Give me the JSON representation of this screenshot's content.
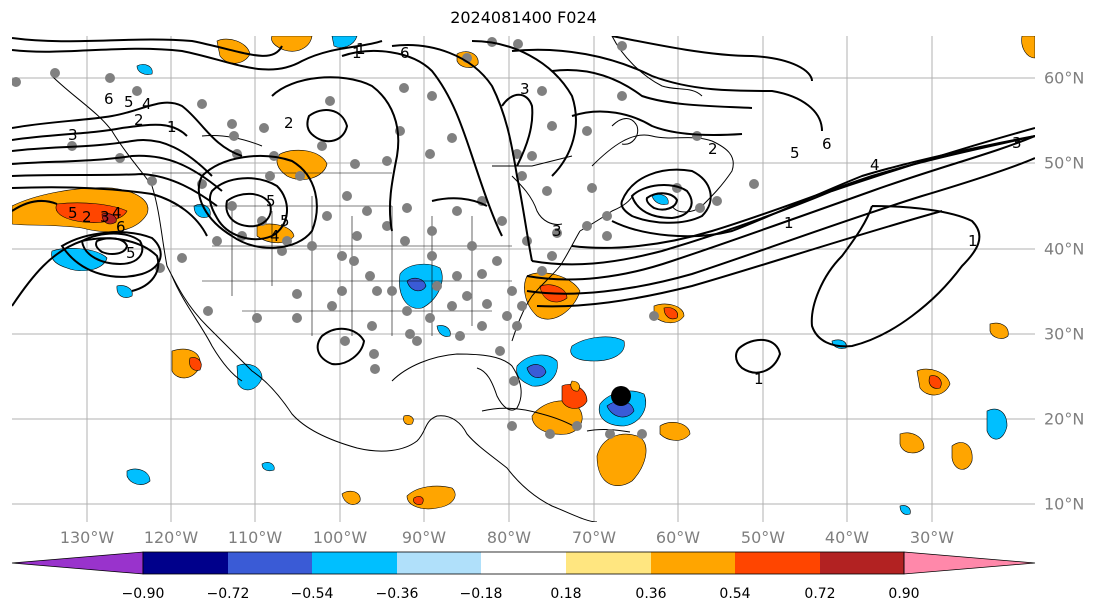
{
  "title": "2024081400 F024",
  "lon_labels": [
    "130°W",
    "120°W",
    "110°W",
    "100°W",
    "90°W",
    "80°W",
    "70°W",
    "60°W",
    "50°W",
    "40°W",
    "30°W"
  ],
  "lat_labels": [
    "60°N",
    "50°N",
    "40°N",
    "30°N",
    "20°N",
    "10°N"
  ],
  "colorbar": {
    "colors": [
      "#9933cc",
      "#00008b",
      "#3a5bd6",
      "#00bfff",
      "#b0e0fa",
      "#ffffff",
      "#ffe680",
      "#ffa500",
      "#ff4500",
      "#b22222",
      "#ff88aa"
    ],
    "labels": [
      "−0.90",
      "−0.72",
      "−0.54",
      "−0.36",
      "−0.18",
      "0.18",
      "0.36",
      "0.54",
      "0.72",
      "0.90"
    ]
  },
  "contour_labels": [
    "6",
    "5",
    "4",
    "2",
    "1",
    "3",
    "5",
    "4",
    "2",
    "3",
    "6",
    "5",
    "2",
    "1",
    "6",
    "5",
    "5",
    "4",
    "3",
    "1",
    "1",
    "1",
    "3",
    "1",
    "6",
    "5",
    "4",
    "2",
    "3"
  ],
  "colors": {
    "gridline": "#b0b0b0",
    "contour": "#000000",
    "station": "#808080",
    "storm": "#000000"
  }
}
